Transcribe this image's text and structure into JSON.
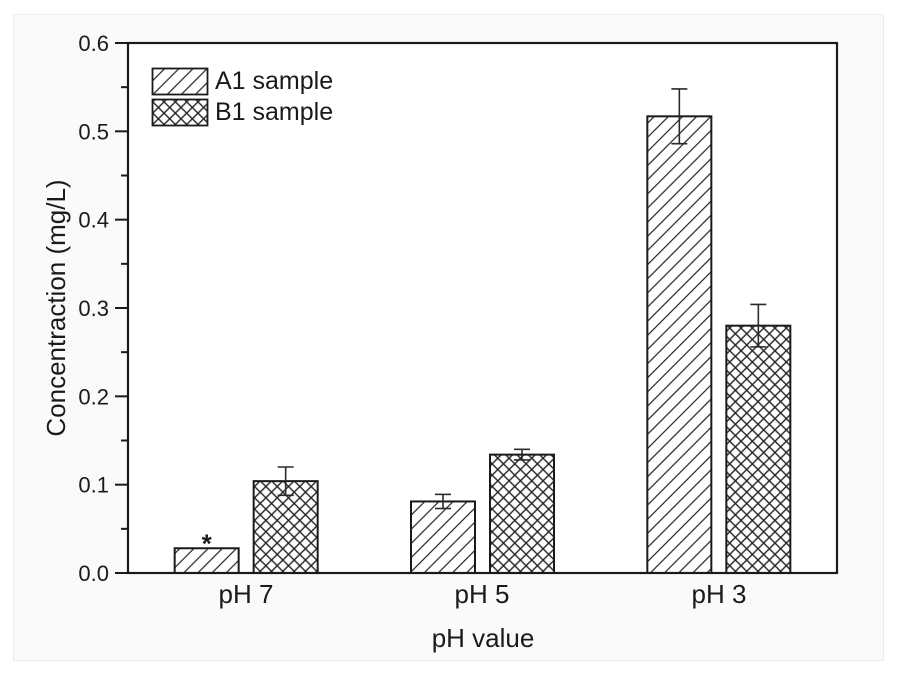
{
  "figure": {
    "background": "#ffffff",
    "panel_background": "#fafafa"
  },
  "chart_data": {
    "type": "bar",
    "title": "",
    "xlabel": "pH value",
    "ylabel": "Concentraction (mg/L)",
    "categories": [
      "pH 7",
      "pH 5",
      "pH 3"
    ],
    "series": [
      {
        "name": "A1 sample",
        "hatch": "diagonal",
        "values": [
          0.028,
          0.081,
          0.517
        ],
        "errors": [
          0,
          0.008,
          0.031
        ]
      },
      {
        "name": "B1 sample",
        "hatch": "crosshatch",
        "values": [
          0.104,
          0.134,
          0.28
        ],
        "errors": [
          0.016,
          0.006,
          0.024
        ]
      }
    ],
    "ylim": [
      0,
      0.6
    ],
    "ytick_values": [
      0,
      0.1,
      0.2,
      0.3,
      0.4,
      0.5,
      0.6
    ],
    "ytick_labels": [
      "0.0",
      "0.1",
      "0.2",
      "0.3",
      "0.4",
      "0.5",
      "0.6"
    ],
    "minor_tick_step": 0.05,
    "grid": false,
    "legend_position": "top-left",
    "annotations": [
      {
        "text": "*",
        "category": "pH 7",
        "series": "A1 sample"
      }
    ],
    "ink_color": "#1a1a1a"
  }
}
